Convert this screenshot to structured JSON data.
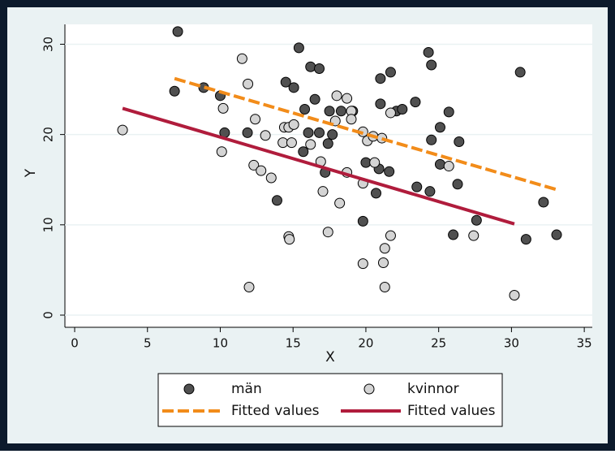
{
  "chart_data": {
    "type": "scatter",
    "x_label": "X",
    "y_label": "Y",
    "xlim": [
      -0.67,
      35.55
    ],
    "ylim": [
      -1.35,
      32.2
    ],
    "xticks": [
      0,
      5,
      10,
      15,
      20,
      25,
      30,
      35
    ],
    "yticks": [
      0,
      10,
      20,
      30
    ],
    "grid": true,
    "legend": "bottom",
    "series": [
      {
        "name": "män",
        "type": "scatter",
        "color": "#505050",
        "x": [
          7.08,
          6.86,
          8.86,
          10.0,
          10.3,
          11.87,
          13.9,
          14.5,
          15.05,
          15.4,
          16.2,
          16.8,
          16.5,
          15.8,
          16.05,
          16.8,
          15.7,
          17.4,
          17.2,
          17.5,
          17.7,
          18.3,
          19.1,
          21.0,
          21.0,
          21.7,
          22.1,
          22.5,
          23.4,
          24.3,
          24.5,
          24.5,
          25.1,
          25.7,
          25.1,
          26.4,
          23.5,
          24.4,
          20.7,
          20.9,
          21.6,
          20.0,
          19.8,
          26.0,
          26.3,
          27.6,
          30.6,
          32.2,
          33.1,
          31.0
        ],
        "values": [
          31.4,
          24.8,
          25.2,
          24.3,
          20.2,
          20.2,
          12.7,
          25.8,
          25.2,
          29.6,
          27.5,
          27.3,
          23.9,
          22.8,
          20.2,
          20.2,
          18.1,
          19.0,
          15.8,
          22.6,
          20.0,
          22.6,
          22.6,
          26.2,
          23.4,
          26.9,
          22.6,
          22.8,
          23.6,
          29.1,
          27.7,
          19.4,
          20.8,
          22.5,
          16.7,
          19.2,
          14.2,
          13.7,
          13.5,
          16.2,
          15.9,
          16.9,
          10.4,
          8.9,
          14.5,
          10.5,
          26.9,
          12.5,
          8.9,
          8.4
        ]
      },
      {
        "name": "kvinnor",
        "type": "scatter",
        "color": "#d4d4d4",
        "x": [
          3.29,
          11.5,
          11.9,
          10.2,
          10.1,
          12.3,
          12.8,
          13.1,
          12.4,
          13.5,
          11.98,
          14.3,
          14.4,
          14.7,
          14.9,
          15.05,
          14.7,
          14.75,
          16.2,
          16.9,
          17.05,
          17.4,
          18.0,
          18.7,
          19.0,
          19.0,
          17.9,
          18.7,
          18.2,
          19.8,
          20.1,
          20.5,
          21.1,
          21.7,
          20.6,
          19.8,
          19.8,
          21.3,
          21.2,
          21.3,
          21.7,
          25.7,
          27.4,
          30.2
        ],
        "values": [
          20.5,
          28.4,
          25.6,
          22.9,
          18.1,
          16.6,
          16.0,
          19.9,
          21.7,
          15.2,
          3.1,
          19.1,
          20.8,
          20.8,
          19.1,
          21.1,
          8.7,
          8.4,
          18.9,
          17.0,
          13.7,
          9.2,
          24.3,
          24.0,
          22.6,
          21.7,
          21.5,
          15.8,
          12.4,
          20.3,
          19.3,
          19.8,
          19.6,
          22.4,
          16.9,
          14.6,
          5.7,
          7.4,
          5.8,
          3.1,
          8.8,
          16.5,
          8.8,
          2.2
        ]
      },
      {
        "name": "Fitted values",
        "type": "line",
        "dash": true,
        "color": "#f28c1a",
        "x": [
          6.86,
          33.1
        ],
        "values": [
          26.2,
          13.9
        ]
      },
      {
        "name": "Fitted values",
        "type": "line",
        "dash": false,
        "color": "#b01c3c",
        "x": [
          3.29,
          30.2
        ],
        "values": [
          22.9,
          10.1
        ]
      }
    ]
  }
}
